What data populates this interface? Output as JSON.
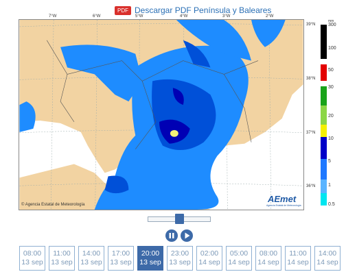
{
  "header": {
    "badge": "PDF",
    "link": "Descargar PDF Península y Baleares"
  },
  "map": {
    "longitudes": [
      "7°W",
      "6°W",
      "5°W",
      "4°W",
      "3°W",
      "2°W"
    ],
    "latitudes": [
      "39°N",
      "38°N",
      "37°N",
      "36°N"
    ],
    "copyright": "© Agencia Estatal de Meteorología",
    "logo": "AEmet",
    "logo_subtitle": "Agencia Estatal de Meteorología"
  },
  "legend": {
    "unit": "mm",
    "labels": [
      300,
      100,
      50,
      30,
      20,
      10,
      5,
      1,
      0.5
    ]
  },
  "timeline": [
    {
      "time": "08:00",
      "date": "13 sep"
    },
    {
      "time": "11:00",
      "date": "13 sep"
    },
    {
      "time": "14:00",
      "date": "13 sep"
    },
    {
      "time": "17:00",
      "date": "13 sep"
    },
    {
      "time": "20:00",
      "date": "13 sep"
    },
    {
      "time": "23:00",
      "date": "13 sep"
    },
    {
      "time": "02:00",
      "date": "14 sep"
    },
    {
      "time": "05:00",
      "date": "14 sep"
    },
    {
      "time": "08:00",
      "date": "14 sep"
    },
    {
      "time": "11:00",
      "date": "14 sep"
    },
    {
      "time": "14:00",
      "date": "14 sep"
    }
  ]
}
